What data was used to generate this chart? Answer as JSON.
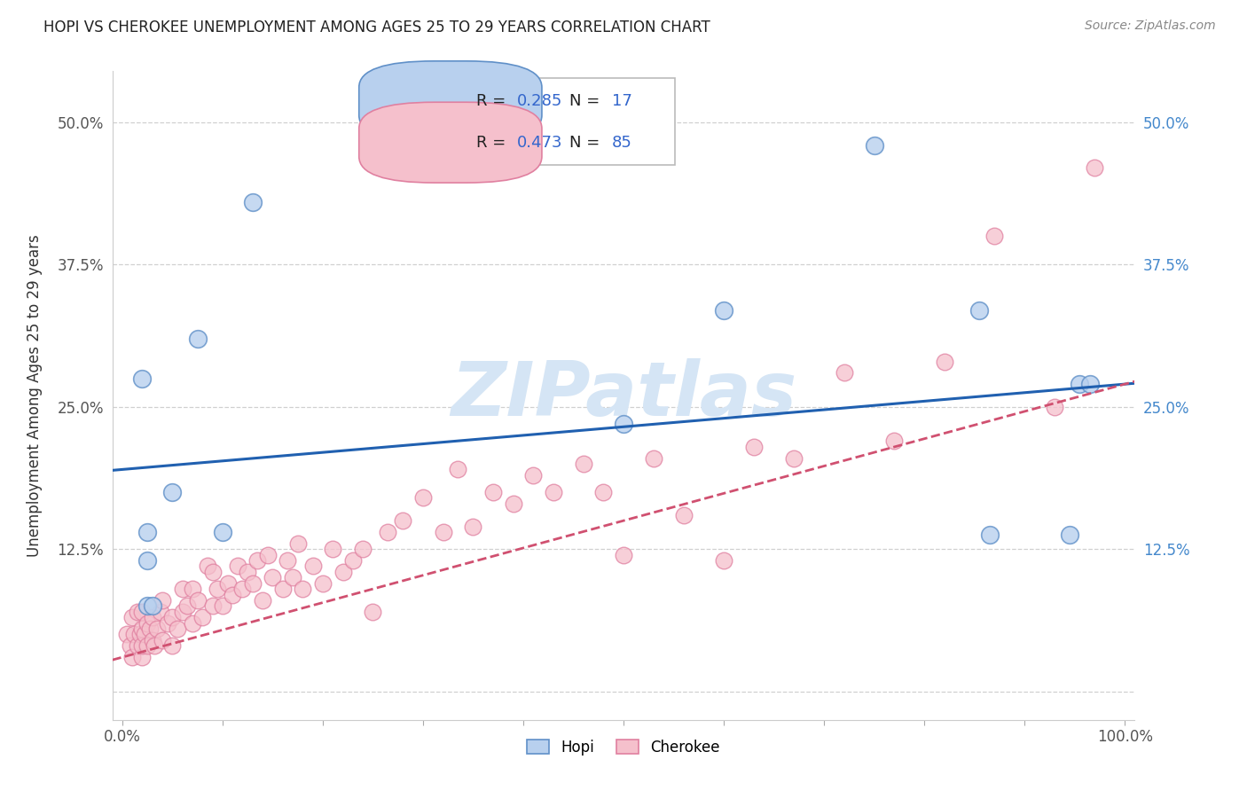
{
  "title": "HOPI VS CHEROKEE UNEMPLOYMENT AMONG AGES 25 TO 29 YEARS CORRELATION CHART",
  "source": "Source: ZipAtlas.com",
  "ylabel": "Unemployment Among Ages 25 to 29 years",
  "xlim": [
    -0.01,
    1.01
  ],
  "ylim": [
    -0.025,
    0.545
  ],
  "hopi_R": "0.285",
  "hopi_N": "17",
  "cherokee_R": "0.473",
  "cherokee_N": "85",
  "hopi_face_color": "#b8d0ee",
  "cherokee_face_color": "#f5c0cc",
  "hopi_edge_color": "#6090c8",
  "cherokee_edge_color": "#e080a0",
  "hopi_line_color": "#2060b0",
  "cherokee_line_color": "#d05070",
  "right_tick_color": "#4488cc",
  "watermark": "ZIPatlas",
  "watermark_color": "#d5e5f5",
  "background_color": "#ffffff",
  "grid_color": "#d0d0d0",
  "legend_text_color": "#3366cc",
  "hopi_intercept": 0.195,
  "hopi_slope": 0.075,
  "cherokee_intercept": 0.03,
  "cherokee_slope": 0.24,
  "hopi_x": [
    0.02,
    0.025,
    0.025,
    0.025,
    0.03,
    0.05,
    0.075,
    0.1,
    0.13,
    0.5,
    0.6,
    0.75,
    0.855,
    0.865,
    0.945,
    0.955,
    0.965
  ],
  "hopi_y": [
    0.275,
    0.14,
    0.115,
    0.075,
    0.075,
    0.175,
    0.31,
    0.14,
    0.43,
    0.235,
    0.335,
    0.48,
    0.335,
    0.138,
    0.138,
    0.27,
    0.27
  ],
  "cherokee_x": [
    0.005,
    0.008,
    0.01,
    0.01,
    0.012,
    0.015,
    0.015,
    0.018,
    0.02,
    0.02,
    0.02,
    0.02,
    0.022,
    0.025,
    0.025,
    0.028,
    0.03,
    0.03,
    0.032,
    0.035,
    0.038,
    0.04,
    0.04,
    0.045,
    0.05,
    0.05,
    0.055,
    0.06,
    0.06,
    0.065,
    0.07,
    0.07,
    0.075,
    0.08,
    0.085,
    0.09,
    0.09,
    0.095,
    0.1,
    0.105,
    0.11,
    0.115,
    0.12,
    0.125,
    0.13,
    0.135,
    0.14,
    0.145,
    0.15,
    0.16,
    0.165,
    0.17,
    0.175,
    0.18,
    0.19,
    0.2,
    0.21,
    0.22,
    0.23,
    0.24,
    0.25,
    0.265,
    0.28,
    0.3,
    0.32,
    0.335,
    0.35,
    0.37,
    0.39,
    0.41,
    0.43,
    0.46,
    0.48,
    0.5,
    0.53,
    0.56,
    0.6,
    0.63,
    0.67,
    0.72,
    0.77,
    0.82,
    0.87,
    0.93,
    0.97
  ],
  "cherokee_y": [
    0.05,
    0.04,
    0.065,
    0.03,
    0.05,
    0.04,
    0.07,
    0.05,
    0.03,
    0.04,
    0.055,
    0.07,
    0.05,
    0.04,
    0.06,
    0.055,
    0.045,
    0.065,
    0.04,
    0.055,
    0.07,
    0.045,
    0.08,
    0.06,
    0.04,
    0.065,
    0.055,
    0.07,
    0.09,
    0.075,
    0.06,
    0.09,
    0.08,
    0.065,
    0.11,
    0.075,
    0.105,
    0.09,
    0.075,
    0.095,
    0.085,
    0.11,
    0.09,
    0.105,
    0.095,
    0.115,
    0.08,
    0.12,
    0.1,
    0.09,
    0.115,
    0.1,
    0.13,
    0.09,
    0.11,
    0.095,
    0.125,
    0.105,
    0.115,
    0.125,
    0.07,
    0.14,
    0.15,
    0.17,
    0.14,
    0.195,
    0.145,
    0.175,
    0.165,
    0.19,
    0.175,
    0.2,
    0.175,
    0.12,
    0.205,
    0.155,
    0.115,
    0.215,
    0.205,
    0.28,
    0.22,
    0.29,
    0.4,
    0.25,
    0.46
  ]
}
